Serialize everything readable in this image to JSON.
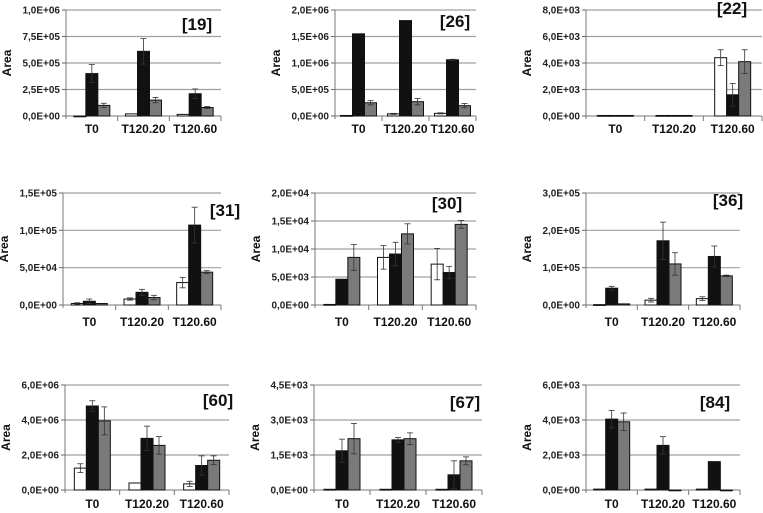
{
  "chart_data": [
    {
      "type": "bar",
      "title": "[19]",
      "ylabel": "Area",
      "categories": [
        "T0",
        "T120.20",
        "T120.60"
      ],
      "ylim": [
        0,
        1000000
      ],
      "yticks": [
        "0,0E+00",
        "2,5E+05",
        "5,0E+05",
        "7,5E+05",
        "1,0E+06"
      ],
      "grid": true,
      "series": [
        {
          "values": [
            0,
            20000,
            15000
          ],
          "errors": [
            0,
            0,
            0
          ]
        },
        {
          "values": [
            400000,
            610000,
            210000
          ],
          "errors": [
            85000,
            120000,
            45000
          ]
        },
        {
          "values": [
            100000,
            150000,
            80000
          ],
          "errors": [
            20000,
            25000,
            10000
          ]
        }
      ]
    },
    {
      "type": "bar",
      "title": "[26]",
      "ylabel": "Area",
      "categories": [
        "T0",
        "T120.20",
        "T120.60"
      ],
      "ylim": [
        0,
        2000000
      ],
      "yticks": [
        "0,0E+00",
        "5,0E+05",
        "1,0E+06",
        "1,5E+06",
        "2,0E+06"
      ],
      "grid": true,
      "series": [
        {
          "values": [
            10000,
            40000,
            50000
          ],
          "errors": [
            0,
            10000,
            10000
          ]
        },
        {
          "values": [
            1550000,
            1800000,
            1060000
          ],
          "errors": [
            0,
            0,
            10000
          ]
        },
        {
          "values": [
            250000,
            270000,
            195000
          ],
          "errors": [
            40000,
            60000,
            40000
          ]
        }
      ]
    },
    {
      "type": "bar",
      "title": "[22]",
      "ylabel": "Area",
      "categories": [
        "T0",
        "T120.20",
        "T120.60"
      ],
      "ylim": [
        0,
        8000
      ],
      "yticks": [
        "0,0E+00",
        "2,0E+03",
        "4,0E+03",
        "6,0E+03",
        "8,0E+03"
      ],
      "grid": true,
      "series": [
        {
          "values": [
            40,
            40,
            4400
          ],
          "errors": [
            0,
            0,
            600
          ]
        },
        {
          "values": [
            40,
            40,
            1600
          ],
          "errors": [
            0,
            0,
            850
          ]
        },
        {
          "values": [
            40,
            40,
            4100
          ],
          "errors": [
            0,
            0,
            900
          ]
        }
      ]
    },
    {
      "type": "bar",
      "title": "[31]",
      "ylabel": "Area",
      "categories": [
        "T0",
        "T120.20",
        "T120.60"
      ],
      "ylim": [
        0,
        150000
      ],
      "yticks": [
        "0,0E+00",
        "5,0E+04",
        "1,0E+05",
        "1,5E+05"
      ],
      "grid": true,
      "series": [
        {
          "values": [
            2000,
            8000,
            30000
          ],
          "errors": [
            1000,
            1500,
            7000
          ]
        },
        {
          "values": [
            5000,
            17000,
            107000
          ],
          "errors": [
            3000,
            4000,
            24000
          ]
        },
        {
          "values": [
            2000,
            10000,
            44000
          ],
          "errors": [
            0,
            3000,
            2000
          ]
        }
      ]
    },
    {
      "type": "bar",
      "title": "[30]",
      "ylabel": "Area",
      "categories": [
        "T0",
        "T120.20",
        "T120.60"
      ],
      "ylim": [
        0,
        20000
      ],
      "yticks": [
        "0,0E+00",
        "5,0E+03",
        "1,0E+04",
        "1,5E+04",
        "2,0E+04"
      ],
      "grid": true,
      "series": [
        {
          "values": [
            100,
            8500,
            7300
          ],
          "errors": [
            0,
            2100,
            2800
          ]
        },
        {
          "values": [
            4600,
            9100,
            5800
          ],
          "errors": [
            0,
            2100,
            1100
          ]
        },
        {
          "values": [
            8500,
            12700,
            14400
          ],
          "errors": [
            2300,
            1800,
            700
          ]
        }
      ]
    },
    {
      "type": "bar",
      "title": "[36]",
      "ylabel": "Area",
      "categories": [
        "T0",
        "T120.20",
        "T120.60"
      ],
      "ylim": [
        0,
        300000
      ],
      "yticks": [
        "0,0E+00",
        "1,0E+05",
        "2,0E+05",
        "3,0E+05"
      ],
      "grid": true,
      "series": [
        {
          "values": [
            1000,
            13000,
            17000
          ],
          "errors": [
            0,
            5000,
            5000
          ]
        },
        {
          "values": [
            45000,
            172000,
            130000
          ],
          "errors": [
            5000,
            50000,
            28000
          ]
        },
        {
          "values": [
            3000,
            110000,
            78000
          ],
          "errors": [
            0,
            30000,
            2000
          ]
        }
      ]
    },
    {
      "type": "bar",
      "title": "[60]",
      "ylabel": "Area",
      "categories": [
        "T0",
        "T120.20",
        "T120.60"
      ],
      "ylim": [
        0,
        6000000
      ],
      "yticks": [
        "0,0E+00",
        "2,0E+06",
        "4,0E+06",
        "6,0E+06"
      ],
      "grid": true,
      "series": [
        {
          "values": [
            1250000,
            400000,
            350000
          ],
          "errors": [
            250000,
            0,
            150000
          ]
        },
        {
          "values": [
            4800000,
            2950000,
            1400000
          ],
          "errors": [
            300000,
            700000,
            550000
          ]
        },
        {
          "values": [
            3950000,
            2550000,
            1700000
          ],
          "errors": [
            800000,
            500000,
            250000
          ]
        }
      ]
    },
    {
      "type": "bar",
      "title": "[67]",
      "ylabel": "Area",
      "categories": [
        "T0",
        "T120.20",
        "T120.60"
      ],
      "ylim": [
        0,
        4500
      ],
      "yticks": [
        "0,0E+00",
        "1,5E+03",
        "3,0E+03",
        "4,5E+03"
      ],
      "grid": true,
      "series": [
        {
          "values": [
            30,
            30,
            30
          ],
          "errors": [
            0,
            0,
            0
          ]
        },
        {
          "values": [
            1680,
            2150,
            650
          ],
          "errors": [
            500,
            100,
            600
          ]
        },
        {
          "values": [
            2200,
            2200,
            1250
          ],
          "errors": [
            650,
            250,
            170
          ]
        }
      ]
    },
    {
      "type": "bar",
      "title": "[84]",
      "ylabel": "Area",
      "categories": [
        "T0",
        "T120.20",
        "T120.60"
      ],
      "ylim": [
        0,
        6000
      ],
      "yticks": [
        "0,0E+00",
        "2,0E+03",
        "4,0E+03",
        "6,0E+03"
      ],
      "grid": true,
      "series": [
        {
          "values": [
            50,
            50,
            50
          ],
          "errors": [
            0,
            0,
            0
          ]
        },
        {
          "values": [
            4050,
            2550,
            1620
          ],
          "errors": [
            500,
            500,
            0
          ]
        },
        {
          "values": [
            3900,
            0,
            0
          ],
          "errors": [
            500,
            0,
            0
          ]
        }
      ]
    }
  ],
  "colors": {
    "series": [
      "#ffffff",
      "#111111",
      "#7a7a7a"
    ],
    "grid": "#a0a0a0"
  }
}
